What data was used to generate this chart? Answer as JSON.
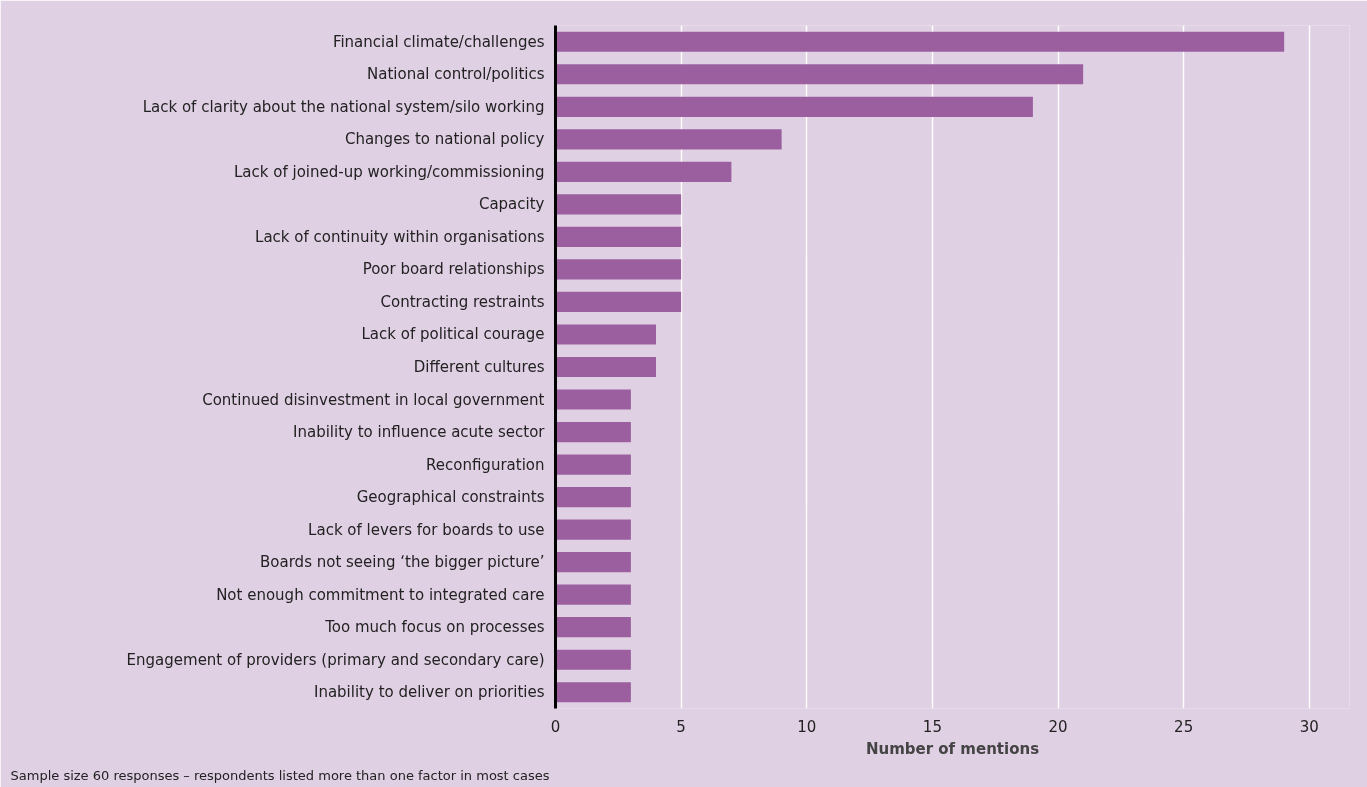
{
  "chart_data": {
    "type": "bar",
    "orientation": "horizontal",
    "xlabel": "Number of mentions",
    "categories": [
      "Financial climate/challenges",
      "National control/politics",
      "Lack of clarity about the national system/silo working",
      "Changes to national policy",
      "Lack of joined-up working/commissioning",
      "Capacity",
      "Lack of continuity within organisations",
      "Poor board relationships",
      "Contracting restraints",
      "Lack of political courage",
      "Different cultures",
      "Continued disinvestment in local government",
      "Inability to influence acute sector",
      "Reconfiguration",
      "Geographical constraints",
      "Lack of levers for boards to use",
      "Boards not seeing ‘the bigger picture’",
      "Not enough commitment to integrated care",
      "Too much focus on processes",
      "Engagement of providers (primary and secondary care)",
      "Inability to deliver on priorities"
    ],
    "values": [
      29,
      21,
      19,
      9,
      7,
      5,
      5,
      5,
      5,
      4,
      4,
      3,
      3,
      3,
      3,
      3,
      3,
      3,
      3,
      3,
      3
    ],
    "color": "#9b5fa0",
    "xlim": [
      0,
      31.6
    ],
    "xticks": [
      0,
      5,
      10,
      15,
      20,
      25,
      30
    ],
    "grid": "x",
    "annotations": [
      "Sample size  60 responses – respondents listed more than one factor in most cases"
    ]
  }
}
